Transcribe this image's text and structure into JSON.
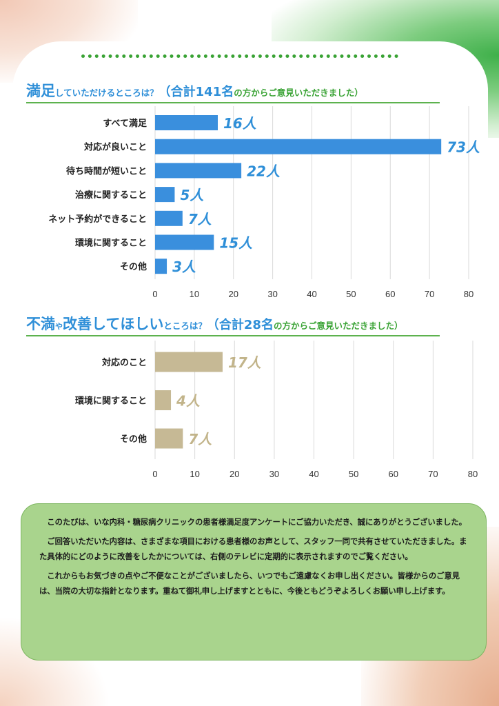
{
  "heading1": {
    "a": "満足",
    "b": "していただけるところは？",
    "c": "（合計141名",
    "d": "の方からご意見いただきました）"
  },
  "heading2": {
    "a": "不満",
    "b": "や",
    "c": "改善してほしい",
    "d": "ところは？",
    "e": "（合計28名",
    "f": "の方からご意見いただきました）"
  },
  "chart_data": [
    {
      "type": "bar",
      "orientation": "horizontal",
      "categories": [
        "すべて満足",
        "対応が良いこと",
        "待ち時間が短いこと",
        "治療に関すること",
        "ネット予約ができること",
        "環境に関すること",
        "その他"
      ],
      "values": [
        16,
        73,
        22,
        5,
        7,
        15,
        3
      ],
      "value_labels": [
        "16人",
        "73人",
        "22人",
        "5人",
        "7人",
        "15人",
        "3人"
      ],
      "xticks": [
        "0",
        "10",
        "20",
        "30",
        "40",
        "50",
        "60",
        "70",
        "80"
      ],
      "xlim": [
        0,
        80
      ],
      "bar_color": "#3a8fdd",
      "label_color": "#2f8fd8",
      "grid": true
    },
    {
      "type": "bar",
      "orientation": "horizontal",
      "categories": [
        "対応のこと",
        "環境に関すること",
        "その他"
      ],
      "values": [
        17,
        4,
        7
      ],
      "value_labels": [
        "17人",
        "4人",
        "7人"
      ],
      "xticks": [
        "0",
        "10",
        "20",
        "30",
        "40",
        "50",
        "60",
        "70",
        "80"
      ],
      "xlim": [
        0,
        80
      ],
      "bar_color": "#c6b995",
      "label_color": "#c2b48a",
      "grid": true
    }
  ],
  "note": {
    "p1": "このたびは、いな内科・糖尿病クリニックの患者様満足度アンケートにご協力いただき、誠にありがとうございました。",
    "p2": "ご回答いただいた内容は、さまざまな項目における患者様のお声として、スタッフ一同で共有させていただきました。また具体的にどのように改善をしたかについては、右側のテレビに定期的に表示されますのでご覧ください。",
    "p3": "これからもお気づきの点やご不便なことがございましたら、いつでもご遠慮なくお申し出ください。皆様からのご意見は、当院の大切な指針となります。重ねて御礼申し上げますとともに、今後ともどうぞよろしくお願い申し上げます。"
  }
}
